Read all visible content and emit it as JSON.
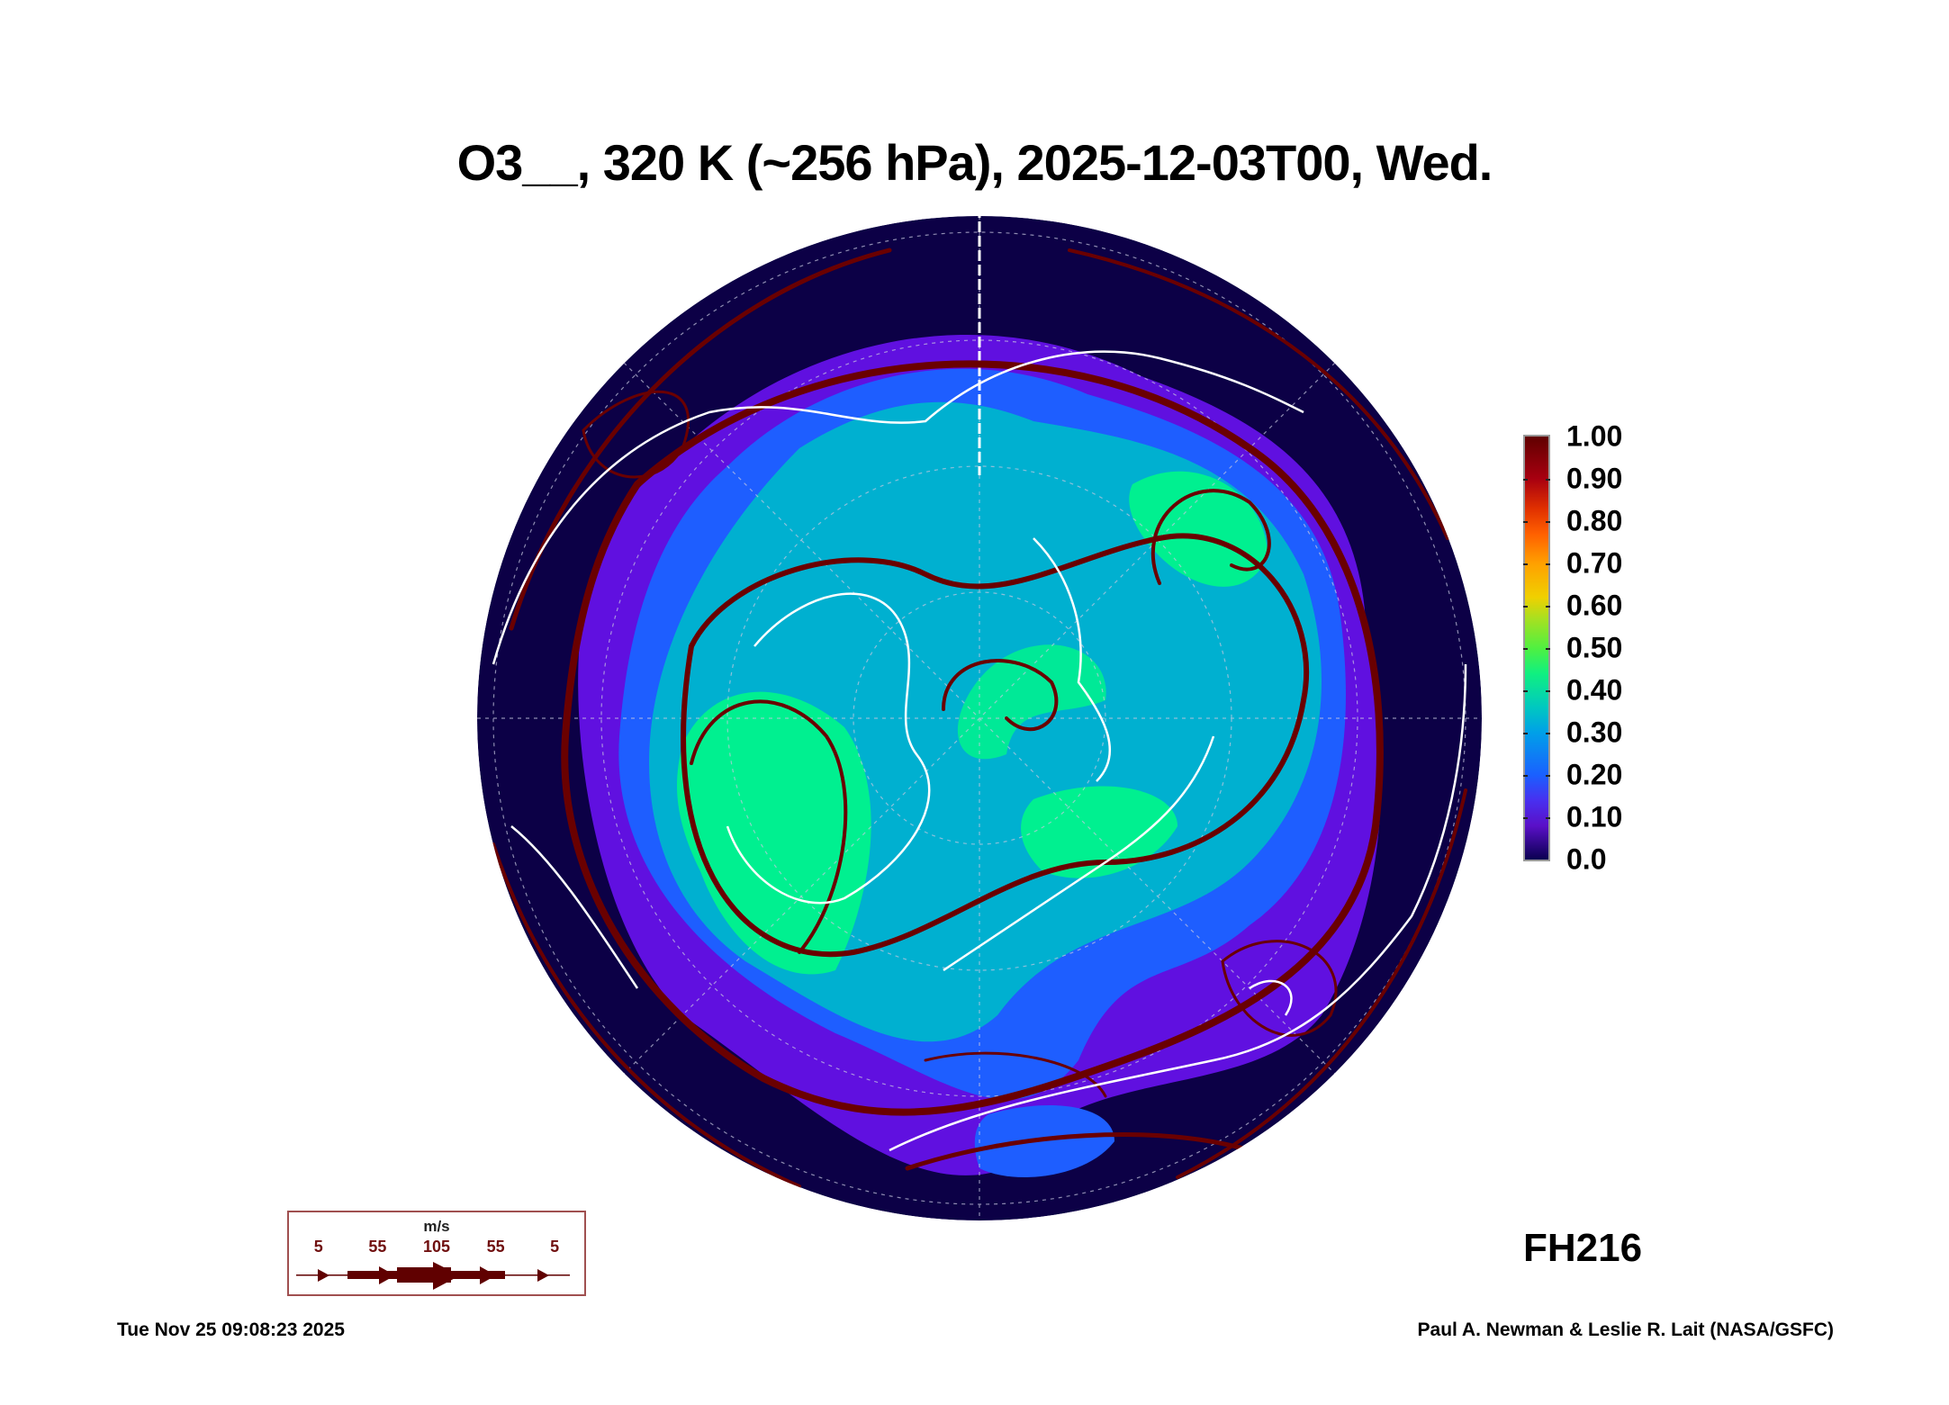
{
  "chart_data": {
    "type": "heatmap",
    "title": "O3__, 320 K (~256 hPa), 2025-12-03T00, Wed.",
    "projection": "north-polar-orthographic",
    "variable": "O3",
    "colorbar": {
      "ticks": [
        "0.0",
        "0.10",
        "0.20",
        "0.30",
        "0.40",
        "0.50",
        "0.60",
        "0.70",
        "0.80",
        "0.90",
        "1.00"
      ],
      "range": [
        0.0,
        1.0
      ]
    },
    "wind_legend": {
      "unit": "m/s",
      "speeds": [
        "5",
        "55",
        "105",
        "55",
        "5"
      ]
    },
    "forecast_hour": "FH216",
    "colors": {
      "navy": "#0c0046",
      "purple": "#6010e0",
      "blue": "#1e5eff",
      "cyan": "#00b0d0",
      "green": "#00f090",
      "stream": "#6a0000",
      "coast": "#ffffff"
    }
  },
  "footer": {
    "timestamp": "Tue Nov 25 09:08:23 2025",
    "credit": "Paul A. Newman & Leslie R. Lait (NASA/GSFC)"
  }
}
